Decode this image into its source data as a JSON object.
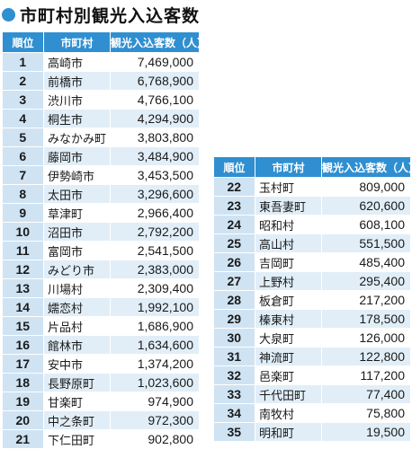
{
  "title": "市町村別観光入込客数",
  "headers": {
    "rank": "順位",
    "city": "市町村",
    "visitors": "観光入込客数（人）"
  },
  "left_rows": [
    {
      "rank": "1",
      "city": "高崎市",
      "visitors": "7,469,000"
    },
    {
      "rank": "2",
      "city": "前橋市",
      "visitors": "6,768,900"
    },
    {
      "rank": "3",
      "city": "渋川市",
      "visitors": "4,766,100"
    },
    {
      "rank": "4",
      "city": "桐生市",
      "visitors": "4,294,900"
    },
    {
      "rank": "5",
      "city": "みなかみ町",
      "visitors": "3,803,800"
    },
    {
      "rank": "6",
      "city": "藤岡市",
      "visitors": "3,484,900"
    },
    {
      "rank": "7",
      "city": "伊勢崎市",
      "visitors": "3,453,500"
    },
    {
      "rank": "8",
      "city": "太田市",
      "visitors": "3,296,600"
    },
    {
      "rank": "9",
      "city": "草津町",
      "visitors": "2,966,400"
    },
    {
      "rank": "10",
      "city": "沼田市",
      "visitors": "2,792,200"
    },
    {
      "rank": "11",
      "city": "富岡市",
      "visitors": "2,541,500"
    },
    {
      "rank": "12",
      "city": "みどり市",
      "visitors": "2,383,000"
    },
    {
      "rank": "13",
      "city": "川場村",
      "visitors": "2,309,400"
    },
    {
      "rank": "14",
      "city": "嬬恋村",
      "visitors": "1,992,100"
    },
    {
      "rank": "15",
      "city": "片品村",
      "visitors": "1,686,900"
    },
    {
      "rank": "16",
      "city": "館林市",
      "visitors": "1,634,600"
    },
    {
      "rank": "17",
      "city": "安中市",
      "visitors": "1,374,200"
    },
    {
      "rank": "18",
      "city": "長野原町",
      "visitors": "1,023,600"
    },
    {
      "rank": "19",
      "city": "甘楽町",
      "visitors": "974,900"
    },
    {
      "rank": "20",
      "city": "中之条町",
      "visitors": "972,300"
    },
    {
      "rank": "21",
      "city": "下仁田町",
      "visitors": "902,800"
    }
  ],
  "right_rows": [
    {
      "rank": "22",
      "city": "玉村町",
      "visitors": "809,000"
    },
    {
      "rank": "23",
      "city": "東吾妻町",
      "visitors": "620,600"
    },
    {
      "rank": "24",
      "city": "昭和村",
      "visitors": "608,100"
    },
    {
      "rank": "25",
      "city": "高山村",
      "visitors": "551,500"
    },
    {
      "rank": "26",
      "city": "吉岡町",
      "visitors": "485,400"
    },
    {
      "rank": "27",
      "city": "上野村",
      "visitors": "295,400"
    },
    {
      "rank": "28",
      "city": "板倉町",
      "visitors": "217,200"
    },
    {
      "rank": "29",
      "city": "榛東村",
      "visitors": "178,500"
    },
    {
      "rank": "30",
      "city": "大泉町",
      "visitors": "126,000"
    },
    {
      "rank": "31",
      "city": "神流町",
      "visitors": "122,800"
    },
    {
      "rank": "32",
      "city": "邑楽町",
      "visitors": "117,200"
    },
    {
      "rank": "33",
      "city": "千代田町",
      "visitors": "77,400"
    },
    {
      "rank": "34",
      "city": "南牧村",
      "visitors": "75,800"
    },
    {
      "rank": "35",
      "city": "明和町",
      "visitors": "19,500"
    }
  ],
  "colors": {
    "accent": "#2f8fd0",
    "rank_cell": "#cfe3f3",
    "row_stripe": "#e1eef8"
  }
}
